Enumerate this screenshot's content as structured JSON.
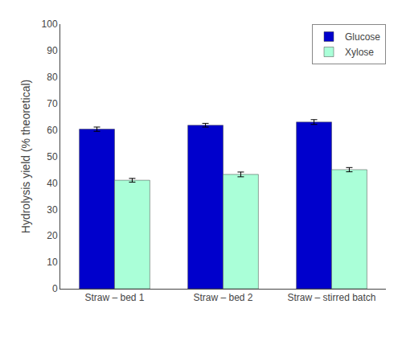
{
  "chart_data": {
    "type": "bar",
    "categories": [
      "Straw – bed 1",
      "Straw – bed 2",
      "Straw – stirred batch"
    ],
    "series": [
      {
        "name": "Glucose",
        "color": "#0000CC",
        "values": [
          60.3,
          61.8,
          63.0
        ],
        "errors": [
          0.8,
          0.7,
          0.9
        ]
      },
      {
        "name": "Xylose",
        "color": "#AAFFD8",
        "values": [
          41.0,
          43.2,
          45.0
        ],
        "errors": [
          0.7,
          0.9,
          0.8
        ]
      }
    ],
    "ylabel": "Hydrolysis yield (% theoretical)",
    "ylim": [
      0,
      100
    ],
    "yticks": [
      0,
      10,
      20,
      30,
      40,
      50,
      60,
      70,
      80,
      90,
      100
    ],
    "grid": false,
    "legend": "upper right"
  }
}
